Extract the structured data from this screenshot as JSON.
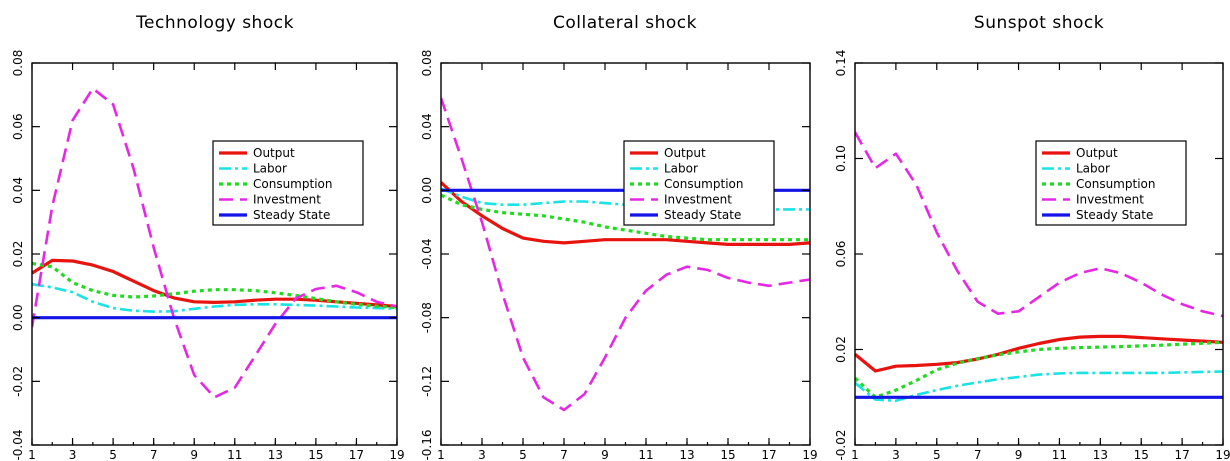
{
  "chart_data": [
    {
      "type": "line",
      "title": "Technology shock",
      "x": [
        1,
        2,
        3,
        4,
        5,
        6,
        7,
        8,
        9,
        10,
        11,
        12,
        13,
        14,
        15,
        16,
        17,
        18,
        19
      ],
      "xticks": [
        1,
        3,
        5,
        7,
        9,
        11,
        13,
        15,
        17,
        19
      ],
      "xlim": [
        1,
        19
      ],
      "ylim": [
        -0.04,
        0.08
      ],
      "yticks": [
        "-0.04",
        "-0.02",
        "0.00",
        "0.02",
        "0.04",
        "0.06",
        "0.08"
      ],
      "legend_position": "center-right",
      "series": [
        {
          "name": "Output",
          "color": "#e8130f",
          "style": "solid",
          "values": [
            0.014,
            0.018,
            0.0178,
            0.0165,
            0.0145,
            0.0115,
            0.0085,
            0.0062,
            0.005,
            0.0048,
            0.005,
            0.0055,
            0.0058,
            0.0058,
            0.0055,
            0.005,
            0.0045,
            0.004,
            0.0035
          ]
        },
        {
          "name": "Labor",
          "color": "#19e3e3",
          "style": "dashdot",
          "values": [
            0.0105,
            0.0095,
            0.008,
            0.005,
            0.003,
            0.0022,
            0.0019,
            0.002,
            0.0028,
            0.0035,
            0.004,
            0.0042,
            0.0042,
            0.004,
            0.0038,
            0.0035,
            0.0032,
            0.003,
            0.0028
          ]
        },
        {
          "name": "Consumption",
          "color": "#1fdc1f",
          "style": "dotted",
          "values": [
            0.017,
            0.016,
            0.011,
            0.0085,
            0.007,
            0.0065,
            0.0068,
            0.0075,
            0.0083,
            0.0088,
            0.0088,
            0.0085,
            0.0078,
            0.007,
            0.006,
            0.005,
            0.0042,
            0.0036,
            0.0032
          ]
        },
        {
          "name": "Investment",
          "color": "#e628e6",
          "style": "dashed",
          "values": [
            -0.003,
            0.035,
            0.062,
            0.072,
            0.067,
            0.047,
            0.022,
            0.0,
            -0.018,
            -0.025,
            -0.022,
            -0.012,
            -0.002,
            0.006,
            0.009,
            0.01,
            0.008,
            0.005,
            0.0035
          ]
        },
        {
          "name": "Steady State",
          "color": "#1414e6",
          "style": "solid",
          "values": [
            0,
            0,
            0,
            0,
            0,
            0,
            0,
            0,
            0,
            0,
            0,
            0,
            0,
            0,
            0,
            0,
            0,
            0,
            0
          ]
        }
      ]
    },
    {
      "type": "line",
      "title": "Collateral shock",
      "x": [
        1,
        2,
        3,
        4,
        5,
        6,
        7,
        8,
        9,
        10,
        11,
        12,
        13,
        14,
        15,
        16,
        17,
        18,
        19
      ],
      "xticks": [
        1,
        3,
        5,
        7,
        9,
        11,
        13,
        15,
        17,
        19
      ],
      "xlim": [
        1,
        19
      ],
      "ylim": [
        -0.16,
        0.08
      ],
      "yticks": [
        "-0.16",
        "-0.12",
        "-0.08",
        "-0.04",
        "0.00",
        "0.04",
        "0.08"
      ],
      "legend_position": "center-right",
      "series": [
        {
          "name": "Output",
          "color": "#e8130f",
          "style": "solid",
          "values": [
            0.005,
            -0.007,
            -0.016,
            -0.024,
            -0.03,
            -0.032,
            -0.033,
            -0.032,
            -0.031,
            -0.031,
            -0.031,
            -0.031,
            -0.032,
            -0.033,
            -0.034,
            -0.034,
            -0.034,
            -0.034,
            -0.033
          ]
        },
        {
          "name": "Labor",
          "color": "#19e3e3",
          "style": "dashdot",
          "values": [
            0.001,
            -0.004,
            -0.008,
            -0.009,
            -0.009,
            -0.008,
            -0.007,
            -0.007,
            -0.008,
            -0.009,
            -0.01,
            -0.011,
            -0.011,
            -0.011,
            -0.011,
            -0.011,
            -0.012,
            -0.012,
            -0.012
          ]
        },
        {
          "name": "Consumption",
          "color": "#1fdc1f",
          "style": "dotted",
          "values": [
            -0.003,
            -0.009,
            -0.012,
            -0.014,
            -0.015,
            -0.016,
            -0.018,
            -0.02,
            -0.023,
            -0.025,
            -0.027,
            -0.029,
            -0.03,
            -0.031,
            -0.031,
            -0.031,
            -0.031,
            -0.031,
            -0.031
          ]
        },
        {
          "name": "Investment",
          "color": "#e628e6",
          "style": "dashed",
          "values": [
            0.058,
            0.02,
            -0.02,
            -0.065,
            -0.105,
            -0.13,
            -0.138,
            -0.128,
            -0.105,
            -0.08,
            -0.063,
            -0.053,
            -0.048,
            -0.05,
            -0.055,
            -0.058,
            -0.06,
            -0.058,
            -0.056
          ]
        },
        {
          "name": "Steady State",
          "color": "#1414e6",
          "style": "solid",
          "values": [
            0,
            0,
            0,
            0,
            0,
            0,
            0,
            0,
            0,
            0,
            0,
            0,
            0,
            0,
            0,
            0,
            0,
            0,
            0
          ]
        }
      ]
    },
    {
      "type": "line",
      "title": "Sunspot shock",
      "x": [
        1,
        2,
        3,
        4,
        5,
        6,
        7,
        8,
        9,
        10,
        11,
        12,
        13,
        14,
        15,
        16,
        17,
        18,
        19
      ],
      "xticks": [
        1,
        3,
        5,
        7,
        9,
        11,
        13,
        15,
        17,
        19
      ],
      "xlim": [
        1,
        19
      ],
      "ylim": [
        -0.02,
        0.14
      ],
      "yticks": [
        "-0.02",
        "0.02",
        "0.06",
        "0.10",
        "0.14"
      ],
      "legend_position": "center-right",
      "series": [
        {
          "name": "Output",
          "color": "#e8130f",
          "style": "solid",
          "values": [
            0.018,
            0.011,
            0.013,
            0.0133,
            0.0138,
            0.0145,
            0.016,
            0.018,
            0.0205,
            0.0225,
            0.0242,
            0.0252,
            0.0255,
            0.0255,
            0.025,
            0.0245,
            0.024,
            0.0235,
            0.023
          ]
        },
        {
          "name": "Labor",
          "color": "#19e3e3",
          "style": "dashdot",
          "values": [
            0.006,
            -0.001,
            -0.0015,
            0.001,
            0.003,
            0.0048,
            0.0062,
            0.0075,
            0.0085,
            0.0095,
            0.01,
            0.0102,
            0.0102,
            0.0102,
            0.0102,
            0.0102,
            0.0104,
            0.0106,
            0.0108
          ]
        },
        {
          "name": "Consumption",
          "color": "#1fdc1f",
          "style": "dotted",
          "values": [
            0.008,
            0.0,
            0.003,
            0.007,
            0.0115,
            0.0142,
            0.0162,
            0.0178,
            0.019,
            0.02,
            0.0205,
            0.0208,
            0.021,
            0.0212,
            0.0215,
            0.0218,
            0.0222,
            0.0226,
            0.023
          ]
        },
        {
          "name": "Investment",
          "color": "#e628e6",
          "style": "dashed",
          "values": [
            0.111,
            0.096,
            0.102,
            0.089,
            0.069,
            0.053,
            0.04,
            0.035,
            0.036,
            0.042,
            0.048,
            0.052,
            0.054,
            0.052,
            0.048,
            0.043,
            0.039,
            0.036,
            0.034
          ]
        },
        {
          "name": "Steady State",
          "color": "#1414e6",
          "style": "solid",
          "values": [
            0,
            0,
            0,
            0,
            0,
            0,
            0,
            0,
            0,
            0,
            0,
            0,
            0,
            0,
            0,
            0,
            0,
            0,
            0
          ]
        }
      ]
    }
  ]
}
